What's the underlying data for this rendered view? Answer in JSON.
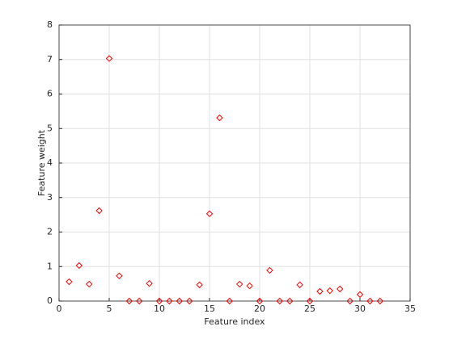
{
  "chart_data": {
    "type": "scatter",
    "xlabel": "Feature index",
    "ylabel": "Feature weight",
    "x": [
      1,
      2,
      3,
      4,
      5,
      6,
      7,
      8,
      9,
      10,
      11,
      12,
      13,
      14,
      15,
      16,
      17,
      18,
      19,
      20,
      21,
      22,
      23,
      24,
      25,
      26,
      27,
      28,
      29,
      30,
      31,
      32
    ],
    "series": [
      {
        "color": "#ff0000",
        "values": [
          0.56,
          1.03,
          0.49,
          2.62,
          7.03,
          0.73,
          0,
          0,
          0.51,
          0,
          0,
          0,
          0,
          0.47,
          2.53,
          5.31,
          0,
          0.49,
          0.44,
          0,
          0.89,
          0,
          0,
          0.47,
          0,
          0.28,
          0.3,
          0.35,
          0,
          0.19,
          0,
          0
        ]
      }
    ],
    "xlim": [
      0,
      35
    ],
    "xticks": [
      0,
      5,
      10,
      15,
      20,
      25,
      30,
      35
    ],
    "ylim": [
      0,
      8
    ],
    "yticks": [
      0,
      1,
      2,
      3,
      4,
      5,
      6,
      7,
      8
    ],
    "grid": true,
    "marker": "diamond"
  }
}
